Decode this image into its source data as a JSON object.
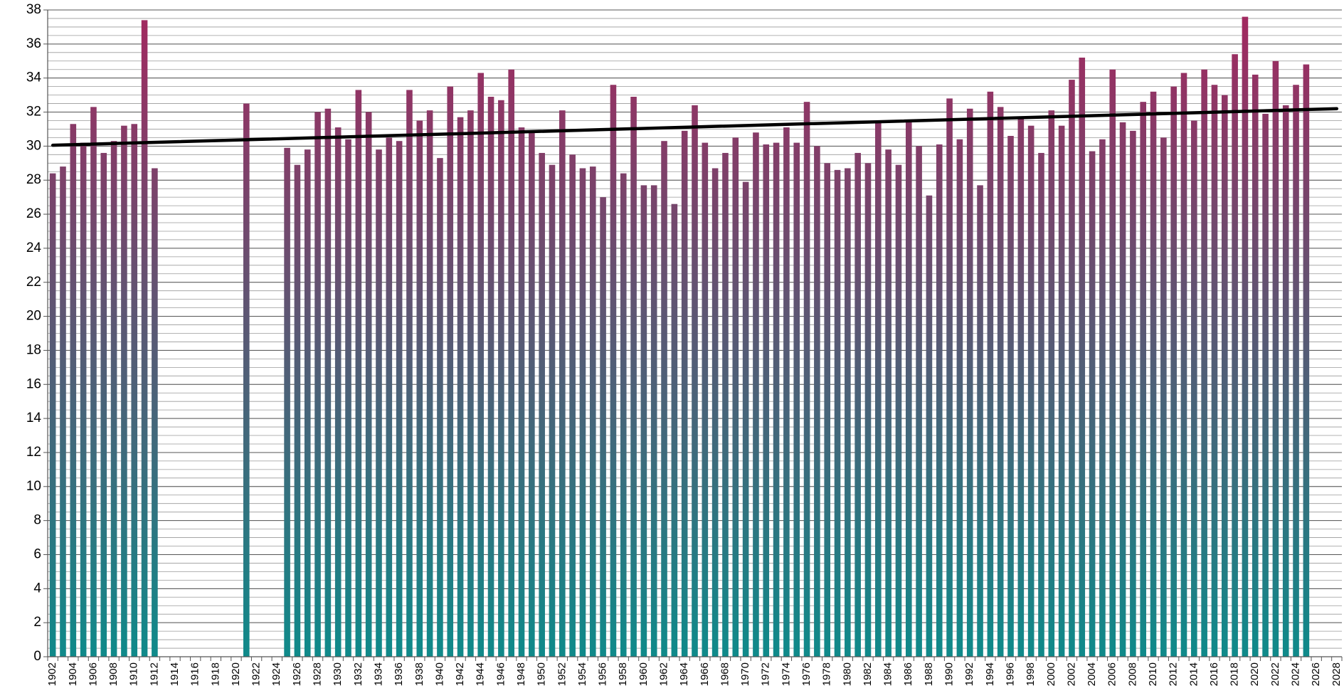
{
  "chart_data": {
    "type": "bar",
    "categories": [
      "1902",
      null,
      "1904",
      null,
      "1906",
      null,
      "1908",
      null,
      "1910",
      null,
      "1912",
      null,
      "1914",
      null,
      "1916",
      null,
      "1918",
      null,
      "1920",
      null,
      "1922",
      null,
      "1924",
      null,
      "1926",
      null,
      "1928",
      null,
      "1930",
      null,
      "1932",
      null,
      "1934",
      null,
      "1936",
      null,
      "1938",
      null,
      "1940",
      null,
      "1942",
      null,
      "1944",
      null,
      "1946",
      null,
      "1948",
      null,
      "1950",
      null,
      "1952",
      null,
      "1954",
      null,
      "1956",
      null,
      "1958",
      null,
      "1960",
      null,
      "1962",
      null,
      "1964",
      null,
      "1966",
      null,
      "1968",
      null,
      "1970",
      null,
      "1972",
      null,
      "1974",
      null,
      "1976",
      null,
      "1978",
      null,
      "1980",
      null,
      "1982",
      null,
      "1984",
      null,
      "1986",
      null,
      "1988",
      null,
      "1990",
      null,
      "1992",
      null,
      "1994",
      null,
      "1996",
      null,
      "1998",
      null,
      "2000",
      null,
      "2002",
      null,
      "2004",
      null,
      "2006",
      null,
      "2008",
      null,
      "2010",
      null,
      "2012",
      null,
      "2014",
      null,
      "2016",
      null,
      "2018",
      null,
      "2020",
      null,
      "2022",
      null,
      "2024",
      null,
      "2026",
      null,
      "2028"
    ],
    "values": [
      28.4,
      28.8,
      31.3,
      30.2,
      32.3,
      29.6,
      30.3,
      31.2,
      31.3,
      37.4,
      28.7,
      null,
      null,
      null,
      null,
      null,
      null,
      null,
      null,
      32.5,
      null,
      null,
      null,
      29.9,
      28.9,
      29.8,
      32.0,
      32.2,
      31.1,
      30.4,
      33.3,
      32.0,
      29.8,
      30.5,
      30.3,
      33.3,
      31.5,
      32.1,
      29.3,
      33.5,
      31.7,
      32.1,
      34.3,
      32.9,
      32.7,
      34.5,
      31.1,
      30.9,
      29.6,
      28.9,
      32.1,
      29.5,
      28.7,
      28.8,
      27.0,
      33.6,
      28.4,
      32.9,
      27.7,
      27.7,
      30.3,
      26.6,
      30.9,
      32.4,
      30.2,
      28.7,
      29.6,
      30.5,
      27.9,
      30.8,
      30.1,
      30.2,
      31.1,
      30.2,
      32.6,
      30.0,
      29.0,
      28.6,
      28.7,
      29.6,
      29.0,
      31.5,
      29.8,
      28.9,
      31.5,
      30.0,
      27.1,
      30.1,
      32.8,
      30.4,
      32.2,
      27.7,
      33.2,
      32.3,
      30.6,
      31.6,
      31.2,
      29.6,
      32.1,
      31.2,
      33.9,
      35.2,
      29.7,
      30.4,
      34.5,
      31.4,
      30.9,
      32.6,
      33.2,
      30.5,
      33.5,
      34.3,
      31.5,
      34.5,
      33.6,
      33.0,
      35.4,
      37.6,
      34.2,
      31.9,
      35.0,
      32.4,
      33.6,
      34.8,
      null,
      null,
      null
    ],
    "gradient_colors": [
      "#a3285f",
      "#0f8a8a"
    ],
    "trendline": {
      "values": [
        30.05,
        32.2
      ],
      "color": "#000000"
    },
    "ylim": [
      0,
      38
    ],
    "yticks": [
      0,
      2,
      4,
      6,
      8,
      10,
      12,
      14,
      16,
      18,
      20,
      22,
      24,
      26,
      28,
      30,
      32,
      34,
      36,
      38
    ],
    "grid": true,
    "minor_grid_step": 0.5
  }
}
